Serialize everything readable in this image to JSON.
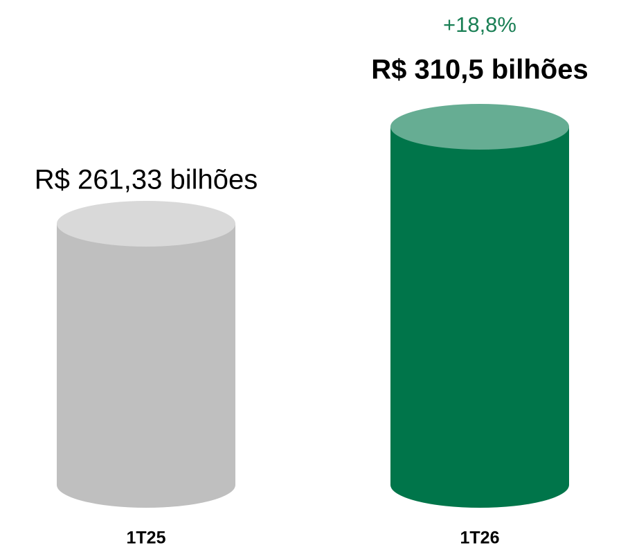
{
  "chart_data": {
    "type": "cylinder",
    "categories": [
      "1T25",
      "1T26"
    ],
    "values": [
      261.33,
      310.5
    ],
    "value_labels": [
      "R$ 261,33 bilhões",
      "R$ 310,5 bilhões"
    ],
    "bold_labels": [
      false,
      true
    ],
    "colors": [
      "#bfbfbf",
      "#00754a"
    ],
    "top_colors": [
      "#d9d9d9",
      "#66ad93"
    ],
    "annotation": "+18,8%",
    "annotation_color": "#1a7f55"
  }
}
